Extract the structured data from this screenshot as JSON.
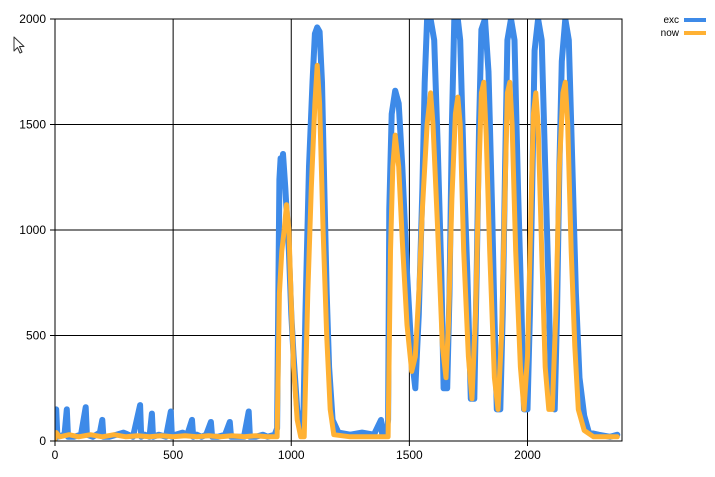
{
  "chart_data": {
    "type": "line",
    "title": "",
    "xlabel": "",
    "ylabel": "",
    "xlim": [
      0,
      2400
    ],
    "ylim": [
      0,
      2000
    ],
    "x_ticks": [
      0,
      500,
      1000,
      1500,
      2000
    ],
    "y_ticks": [
      0,
      500,
      1000,
      1500,
      2000
    ],
    "grid": true,
    "legend_position": "top-right",
    "series": [
      {
        "name": "exc",
        "color": "#3D8AE8",
        "points": [
          [
            0,
            10
          ],
          [
            5,
            150
          ],
          [
            10,
            20
          ],
          [
            40,
            30
          ],
          [
            50,
            150
          ],
          [
            55,
            20
          ],
          [
            80,
            20
          ],
          [
            110,
            30
          ],
          [
            130,
            160
          ],
          [
            135,
            30
          ],
          [
            160,
            20
          ],
          [
            190,
            40
          ],
          [
            200,
            100
          ],
          [
            205,
            20
          ],
          [
            230,
            20
          ],
          [
            260,
            30
          ],
          [
            290,
            40
          ],
          [
            300,
            35
          ],
          [
            330,
            20
          ],
          [
            360,
            170
          ],
          [
            365,
            20
          ],
          [
            380,
            30
          ],
          [
            400,
            20
          ],
          [
            410,
            130
          ],
          [
            415,
            20
          ],
          [
            440,
            30
          ],
          [
            470,
            20
          ],
          [
            490,
            140
          ],
          [
            495,
            20
          ],
          [
            510,
            30
          ],
          [
            540,
            40
          ],
          [
            560,
            30
          ],
          [
            580,
            100
          ],
          [
            585,
            20
          ],
          [
            600,
            30
          ],
          [
            620,
            20
          ],
          [
            640,
            30
          ],
          [
            660,
            90
          ],
          [
            665,
            20
          ],
          [
            690,
            20
          ],
          [
            720,
            30
          ],
          [
            740,
            90
          ],
          [
            745,
            20
          ],
          [
            770,
            20
          ],
          [
            800,
            20
          ],
          [
            820,
            140
          ],
          [
            825,
            20
          ],
          [
            850,
            20
          ],
          [
            880,
            30
          ],
          [
            900,
            20
          ],
          [
            930,
            30
          ],
          [
            940,
            60
          ],
          [
            950,
            1240
          ],
          [
            955,
            1340
          ],
          [
            960,
            1300
          ],
          [
            965,
            1360
          ],
          [
            975,
            1200
          ],
          [
            990,
            900
          ],
          [
            1000,
            600
          ],
          [
            1010,
            400
          ],
          [
            1025,
            150
          ],
          [
            1040,
            40
          ],
          [
            1050,
            40
          ],
          [
            1060,
            600
          ],
          [
            1075,
            1300
          ],
          [
            1090,
            1700
          ],
          [
            1100,
            1930
          ],
          [
            1110,
            1960
          ],
          [
            1120,
            1940
          ],
          [
            1130,
            1700
          ],
          [
            1140,
            1200
          ],
          [
            1150,
            700
          ],
          [
            1160,
            350
          ],
          [
            1175,
            100
          ],
          [
            1200,
            40
          ],
          [
            1250,
            30
          ],
          [
            1300,
            40
          ],
          [
            1350,
            30
          ],
          [
            1380,
            100
          ],
          [
            1385,
            30
          ],
          [
            1400,
            30
          ],
          [
            1410,
            100
          ],
          [
            1415,
            1100
          ],
          [
            1425,
            1550
          ],
          [
            1440,
            1660
          ],
          [
            1455,
            1600
          ],
          [
            1470,
            1300
          ],
          [
            1490,
            800
          ],
          [
            1510,
            400
          ],
          [
            1525,
            250
          ],
          [
            1540,
            600
          ],
          [
            1555,
            1200
          ],
          [
            1565,
            1700
          ],
          [
            1575,
            2000
          ],
          [
            1590,
            2000
          ],
          [
            1605,
            1900
          ],
          [
            1620,
            1400
          ],
          [
            1635,
            800
          ],
          [
            1645,
            250
          ],
          [
            1660,
            250
          ],
          [
            1670,
            700
          ],
          [
            1680,
            1500
          ],
          [
            1690,
            2000
          ],
          [
            1705,
            2000
          ],
          [
            1715,
            1900
          ],
          [
            1730,
            1300
          ],
          [
            1745,
            800
          ],
          [
            1760,
            200
          ],
          [
            1775,
            200
          ],
          [
            1785,
            800
          ],
          [
            1795,
            1500
          ],
          [
            1805,
            1950
          ],
          [
            1820,
            2000
          ],
          [
            1835,
            1750
          ],
          [
            1850,
            1100
          ],
          [
            1860,
            600
          ],
          [
            1870,
            150
          ],
          [
            1885,
            150
          ],
          [
            1895,
            600
          ],
          [
            1905,
            1300
          ],
          [
            1915,
            1900
          ],
          [
            1930,
            2000
          ],
          [
            1945,
            1900
          ],
          [
            1960,
            1200
          ],
          [
            1975,
            600
          ],
          [
            1985,
            150
          ],
          [
            2000,
            150
          ],
          [
            2010,
            600
          ],
          [
            2020,
            1200
          ],
          [
            2030,
            1850
          ],
          [
            2045,
            2000
          ],
          [
            2060,
            1900
          ],
          [
            2075,
            1300
          ],
          [
            2090,
            700
          ],
          [
            2100,
            200
          ],
          [
            2115,
            150
          ],
          [
            2125,
            600
          ],
          [
            2135,
            1300
          ],
          [
            2145,
            1800
          ],
          [
            2160,
            2000
          ],
          [
            2175,
            1900
          ],
          [
            2190,
            1300
          ],
          [
            2205,
            700
          ],
          [
            2220,
            300
          ],
          [
            2240,
            120
          ],
          [
            2260,
            40
          ],
          [
            2300,
            30
          ],
          [
            2350,
            20
          ],
          [
            2380,
            30
          ]
        ]
      },
      {
        "name": "now",
        "color": "#FFB133",
        "points": [
          [
            0,
            10
          ],
          [
            5,
            40
          ],
          [
            20,
            20
          ],
          [
            60,
            30
          ],
          [
            100,
            20
          ],
          [
            150,
            30
          ],
          [
            200,
            20
          ],
          [
            250,
            30
          ],
          [
            300,
            20
          ],
          [
            350,
            25
          ],
          [
            400,
            20
          ],
          [
            450,
            25
          ],
          [
            500,
            20
          ],
          [
            550,
            25
          ],
          [
            600,
            20
          ],
          [
            650,
            25
          ],
          [
            700,
            20
          ],
          [
            750,
            25
          ],
          [
            800,
            20
          ],
          [
            850,
            25
          ],
          [
            900,
            20
          ],
          [
            940,
            20
          ],
          [
            950,
            700
          ],
          [
            960,
            900
          ],
          [
            970,
            1000
          ],
          [
            980,
            1120
          ],
          [
            990,
            1000
          ],
          [
            1000,
            650
          ],
          [
            1010,
            350
          ],
          [
            1025,
            100
          ],
          [
            1040,
            20
          ],
          [
            1055,
            20
          ],
          [
            1070,
            700
          ],
          [
            1085,
            1200
          ],
          [
            1100,
            1600
          ],
          [
            1110,
            1780
          ],
          [
            1120,
            1600
          ],
          [
            1135,
            1000
          ],
          [
            1150,
            500
          ],
          [
            1165,
            150
          ],
          [
            1180,
            30
          ],
          [
            1250,
            20
          ],
          [
            1300,
            20
          ],
          [
            1350,
            20
          ],
          [
            1400,
            20
          ],
          [
            1410,
            20
          ],
          [
            1420,
            900
          ],
          [
            1430,
            1300
          ],
          [
            1440,
            1450
          ],
          [
            1455,
            1300
          ],
          [
            1470,
            950
          ],
          [
            1490,
            550
          ],
          [
            1510,
            330
          ],
          [
            1525,
            400
          ],
          [
            1540,
            700
          ],
          [
            1555,
            1100
          ],
          [
            1575,
            1500
          ],
          [
            1590,
            1650
          ],
          [
            1600,
            1500
          ],
          [
            1620,
            1000
          ],
          [
            1640,
            450
          ],
          [
            1655,
            300
          ],
          [
            1665,
            550
          ],
          [
            1680,
            1150
          ],
          [
            1695,
            1550
          ],
          [
            1705,
            1630
          ],
          [
            1715,
            1500
          ],
          [
            1730,
            900
          ],
          [
            1750,
            400
          ],
          [
            1765,
            200
          ],
          [
            1780,
            600
          ],
          [
            1795,
            1300
          ],
          [
            1805,
            1650
          ],
          [
            1815,
            1700
          ],
          [
            1825,
            1450
          ],
          [
            1840,
            900
          ],
          [
            1860,
            300
          ],
          [
            1875,
            150
          ],
          [
            1890,
            500
          ],
          [
            1905,
            1200
          ],
          [
            1915,
            1650
          ],
          [
            1925,
            1700
          ],
          [
            1935,
            1500
          ],
          [
            1950,
            900
          ],
          [
            1970,
            350
          ],
          [
            1985,
            150
          ],
          [
            2000,
            400
          ],
          [
            2015,
            1100
          ],
          [
            2025,
            1550
          ],
          [
            2035,
            1650
          ],
          [
            2045,
            1500
          ],
          [
            2060,
            900
          ],
          [
            2075,
            350
          ],
          [
            2090,
            150
          ],
          [
            2105,
            150
          ],
          [
            2120,
            600
          ],
          [
            2135,
            1300
          ],
          [
            2150,
            1650
          ],
          [
            2160,
            1700
          ],
          [
            2170,
            1500
          ],
          [
            2185,
            900
          ],
          [
            2200,
            450
          ],
          [
            2215,
            150
          ],
          [
            2240,
            50
          ],
          [
            2280,
            20
          ],
          [
            2330,
            20
          ],
          [
            2380,
            20
          ]
        ]
      }
    ]
  },
  "cursor_icon": "mouse-pointer-icon"
}
